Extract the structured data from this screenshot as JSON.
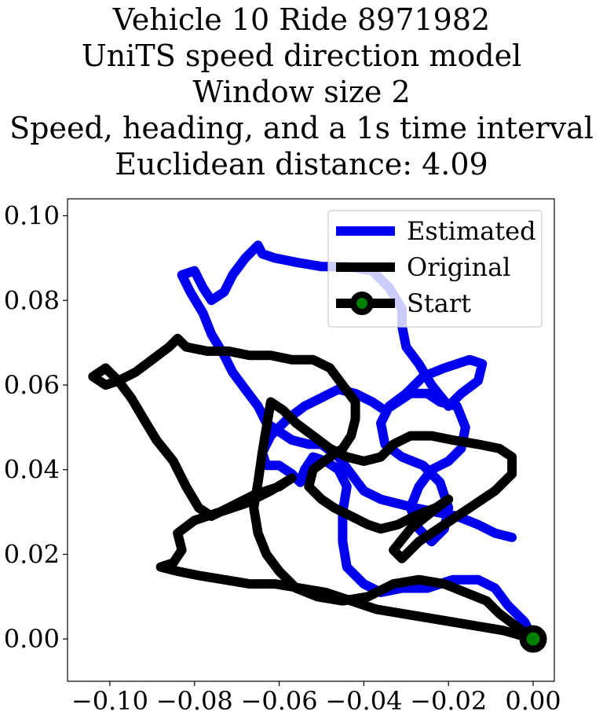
{
  "title_lines": [
    "Vehicle 10 Ride 8971982",
    "UniTS speed direction model",
    "Window size 2",
    "Speed, heading, and a 1s time interval",
    "Euclidean distance: 4.09"
  ],
  "chart_data": {
    "type": "line",
    "title": "Vehicle 10 Ride 8971982 / UniTS speed direction model / Window size 2 / Speed, heading, and a 1s time interval / Euclidean distance: 4.09",
    "xlabel": "",
    "ylabel": "",
    "xlim": [
      -0.11,
      0.005
    ],
    "ylim": [
      -0.01,
      0.104
    ],
    "x_ticks": [
      -0.1,
      -0.08,
      -0.06,
      -0.04,
      -0.02,
      0.0
    ],
    "x_tick_labels": [
      "−0.10",
      "−0.08",
      "−0.06",
      "−0.04",
      "−0.02",
      "0.00"
    ],
    "y_ticks": [
      0.0,
      0.02,
      0.04,
      0.06,
      0.08,
      0.1
    ],
    "y_tick_labels": [
      "0.00",
      "0.02",
      "0.04",
      "0.06",
      "0.08",
      "0.10"
    ],
    "grid": false,
    "legend": {
      "placement": "top-right",
      "entries": [
        {
          "label": "Estimated",
          "color": "#0000ee",
          "kind": "line"
        },
        {
          "label": "Original",
          "color": "#000000",
          "kind": "line"
        },
        {
          "label": "Start",
          "color": "#000000",
          "kind": "start",
          "fill": "#008000"
        }
      ]
    },
    "series": [
      {
        "name": "Estimated",
        "color": "#0000ee",
        "points": [
          [
            0.0,
            0.0
          ],
          [
            -0.002,
            0.004
          ],
          [
            -0.006,
            0.008
          ],
          [
            -0.009,
            0.012
          ],
          [
            -0.013,
            0.014
          ],
          [
            -0.019,
            0.014
          ],
          [
            -0.025,
            0.012
          ],
          [
            -0.031,
            0.012
          ],
          [
            -0.036,
            0.011
          ],
          [
            -0.04,
            0.013
          ],
          [
            -0.044,
            0.017
          ],
          [
            -0.045,
            0.023
          ],
          [
            -0.045,
            0.03
          ],
          [
            -0.044,
            0.036
          ],
          [
            -0.046,
            0.04
          ],
          [
            -0.049,
            0.042
          ],
          [
            -0.052,
            0.043
          ],
          [
            -0.054,
            0.04
          ],
          [
            -0.055,
            0.037
          ],
          [
            -0.057,
            0.039
          ],
          [
            -0.06,
            0.041
          ],
          [
            -0.063,
            0.041
          ],
          [
            -0.064,
            0.044
          ],
          [
            -0.062,
            0.048
          ],
          [
            -0.058,
            0.052
          ],
          [
            -0.054,
            0.055
          ],
          [
            -0.05,
            0.057
          ],
          [
            -0.046,
            0.059
          ],
          [
            -0.042,
            0.058
          ],
          [
            -0.038,
            0.056
          ],
          [
            -0.035,
            0.054
          ],
          [
            -0.032,
            0.056
          ],
          [
            -0.029,
            0.058
          ],
          [
            -0.025,
            0.058
          ],
          [
            -0.022,
            0.056
          ],
          [
            -0.018,
            0.055
          ],
          [
            -0.016,
            0.05
          ],
          [
            -0.017,
            0.045
          ],
          [
            -0.02,
            0.042
          ],
          [
            -0.024,
            0.04
          ],
          [
            -0.027,
            0.036
          ],
          [
            -0.029,
            0.031
          ],
          [
            -0.027,
            0.026
          ],
          [
            -0.024,
            0.023
          ],
          [
            -0.021,
            0.026
          ],
          [
            -0.02,
            0.031
          ],
          [
            -0.022,
            0.037
          ],
          [
            -0.026,
            0.041
          ],
          [
            -0.031,
            0.043
          ],
          [
            -0.035,
            0.046
          ],
          [
            -0.036,
            0.051
          ],
          [
            -0.034,
            0.055
          ],
          [
            -0.03,
            0.058
          ],
          [
            -0.026,
            0.062
          ],
          [
            -0.021,
            0.064
          ],
          [
            -0.015,
            0.066
          ],
          [
            -0.012,
            0.065
          ],
          [
            -0.013,
            0.061
          ],
          [
            -0.017,
            0.058
          ],
          [
            -0.02,
            0.055
          ],
          [
            -0.024,
            0.06
          ],
          [
            -0.027,
            0.065
          ],
          [
            -0.03,
            0.069
          ],
          [
            -0.031,
            0.074
          ],
          [
            -0.031,
            0.078
          ],
          [
            -0.034,
            0.083
          ],
          [
            -0.038,
            0.087
          ],
          [
            -0.044,
            0.088
          ],
          [
            -0.05,
            0.088
          ],
          [
            -0.056,
            0.089
          ],
          [
            -0.061,
            0.09
          ],
          [
            -0.064,
            0.091
          ],
          [
            -0.065,
            0.093
          ],
          [
            -0.068,
            0.09
          ],
          [
            -0.071,
            0.086
          ],
          [
            -0.073,
            0.082
          ],
          [
            -0.076,
            0.08
          ],
          [
            -0.078,
            0.083
          ],
          [
            -0.08,
            0.087
          ],
          [
            -0.083,
            0.086
          ],
          [
            -0.081,
            0.082
          ],
          [
            -0.078,
            0.077
          ],
          [
            -0.076,
            0.072
          ],
          [
            -0.073,
            0.067
          ],
          [
            -0.071,
            0.063
          ],
          [
            -0.068,
            0.059
          ],
          [
            -0.065,
            0.055
          ],
          [
            -0.063,
            0.051
          ],
          [
            -0.06,
            0.049
          ],
          [
            -0.057,
            0.047
          ],
          [
            -0.053,
            0.046
          ],
          [
            -0.05,
            0.046
          ],
          [
            -0.046,
            0.043
          ],
          [
            -0.043,
            0.039
          ],
          [
            -0.04,
            0.035
          ],
          [
            -0.036,
            0.033
          ],
          [
            -0.032,
            0.032
          ],
          [
            -0.028,
            0.031
          ],
          [
            -0.023,
            0.03
          ],
          [
            -0.018,
            0.029
          ],
          [
            -0.013,
            0.027
          ],
          [
            -0.009,
            0.025
          ],
          [
            -0.005,
            0.024
          ]
        ]
      },
      {
        "name": "Original",
        "color": "#000000",
        "points": [
          [
            0.0,
            0.0
          ],
          [
            -0.004,
            0.003
          ],
          [
            -0.008,
            0.006
          ],
          [
            -0.011,
            0.009
          ],
          [
            -0.016,
            0.011
          ],
          [
            -0.021,
            0.013
          ],
          [
            -0.027,
            0.014
          ],
          [
            -0.033,
            0.013
          ],
          [
            -0.039,
            0.01
          ],
          [
            -0.045,
            0.009
          ],
          [
            -0.051,
            0.01
          ],
          [
            -0.056,
            0.012
          ],
          [
            -0.06,
            0.016
          ],
          [
            -0.063,
            0.02
          ],
          [
            -0.065,
            0.025
          ],
          [
            -0.066,
            0.031
          ],
          [
            -0.065,
            0.037
          ],
          [
            -0.064,
            0.044
          ],
          [
            -0.063,
            0.05
          ],
          [
            -0.062,
            0.056
          ],
          [
            -0.059,
            0.054
          ],
          [
            -0.056,
            0.051
          ],
          [
            -0.052,
            0.048
          ],
          [
            -0.048,
            0.045
          ],
          [
            -0.044,
            0.043
          ],
          [
            -0.04,
            0.042
          ],
          [
            -0.036,
            0.043
          ],
          [
            -0.033,
            0.046
          ],
          [
            -0.029,
            0.048
          ],
          [
            -0.024,
            0.048
          ],
          [
            -0.019,
            0.047
          ],
          [
            -0.013,
            0.046
          ],
          [
            -0.008,
            0.045
          ],
          [
            -0.005,
            0.043
          ],
          [
            -0.005,
            0.039
          ],
          [
            -0.009,
            0.035
          ],
          [
            -0.015,
            0.031
          ],
          [
            -0.021,
            0.027
          ],
          [
            -0.027,
            0.023
          ],
          [
            -0.031,
            0.019
          ],
          [
            -0.033,
            0.021
          ],
          [
            -0.029,
            0.026
          ],
          [
            -0.024,
            0.03
          ],
          [
            -0.02,
            0.033
          ],
          [
            -0.023,
            0.031
          ],
          [
            -0.028,
            0.029
          ],
          [
            -0.032,
            0.027
          ],
          [
            -0.036,
            0.026
          ],
          [
            -0.039,
            0.027
          ],
          [
            -0.043,
            0.029
          ],
          [
            -0.047,
            0.031
          ],
          [
            -0.05,
            0.033
          ],
          [
            -0.053,
            0.036
          ],
          [
            -0.052,
            0.04
          ],
          [
            -0.048,
            0.043
          ],
          [
            -0.045,
            0.045
          ],
          [
            -0.043,
            0.048
          ],
          [
            -0.042,
            0.052
          ],
          [
            -0.042,
            0.056
          ],
          [
            -0.045,
            0.06
          ],
          [
            -0.048,
            0.064
          ],
          [
            -0.052,
            0.066
          ],
          [
            -0.057,
            0.066
          ],
          [
            -0.062,
            0.067
          ],
          [
            -0.067,
            0.067
          ],
          [
            -0.072,
            0.068
          ],
          [
            -0.077,
            0.068
          ],
          [
            -0.082,
            0.069
          ],
          [
            -0.084,
            0.071
          ],
          [
            -0.086,
            0.069
          ],
          [
            -0.09,
            0.066
          ],
          [
            -0.094,
            0.063
          ],
          [
            -0.098,
            0.061
          ],
          [
            -0.101,
            0.06
          ],
          [
            -0.104,
            0.062
          ],
          [
            -0.101,
            0.064
          ],
          [
            -0.098,
            0.061
          ],
          [
            -0.095,
            0.057
          ],
          [
            -0.092,
            0.052
          ],
          [
            -0.089,
            0.047
          ],
          [
            -0.085,
            0.042
          ],
          [
            -0.082,
            0.036
          ],
          [
            -0.079,
            0.031
          ],
          [
            -0.076,
            0.029
          ],
          [
            -0.072,
            0.031
          ],
          [
            -0.066,
            0.034
          ],
          [
            -0.06,
            0.036
          ],
          [
            -0.057,
            0.038
          ],
          [
            -0.062,
            0.035
          ],
          [
            -0.068,
            0.032
          ],
          [
            -0.074,
            0.03
          ],
          [
            -0.08,
            0.028
          ],
          [
            -0.084,
            0.025
          ],
          [
            -0.083,
            0.021
          ],
          [
            -0.085,
            0.018
          ],
          [
            -0.088,
            0.017
          ],
          [
            -0.084,
            0.016
          ],
          [
            -0.079,
            0.015
          ],
          [
            -0.073,
            0.014
          ],
          [
            -0.067,
            0.013
          ],
          [
            -0.061,
            0.013
          ],
          [
            -0.055,
            0.012
          ],
          [
            -0.049,
            0.011
          ],
          [
            -0.043,
            0.009
          ],
          [
            -0.037,
            0.007
          ],
          [
            -0.031,
            0.006
          ],
          [
            -0.025,
            0.005
          ],
          [
            -0.019,
            0.004
          ],
          [
            -0.013,
            0.003
          ],
          [
            -0.007,
            0.002
          ],
          [
            0.0,
            0.0
          ]
        ]
      }
    ],
    "start_point": {
      "name": "Start",
      "x": 0.0,
      "y": 0.0,
      "color": "#000000",
      "fill": "#008000"
    }
  }
}
